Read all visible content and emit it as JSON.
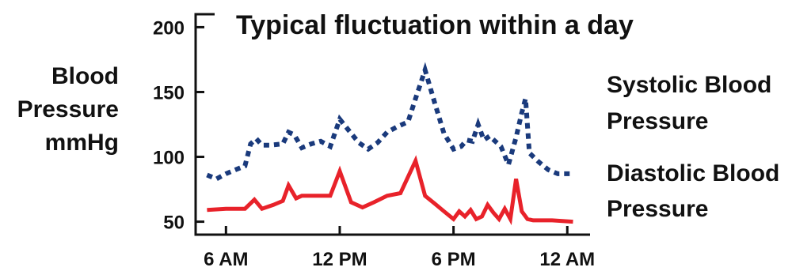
{
  "chart_data": {
    "type": "line",
    "title": "Typical fluctuation within a day",
    "ylabel_lines": [
      "Blood",
      "Pressure",
      "mmHg"
    ],
    "yticks": [
      50,
      100,
      150,
      200
    ],
    "ylim": [
      40,
      210
    ],
    "xticks": [
      {
        "label": "6 AM",
        "hour": 6
      },
      {
        "label": "12 PM",
        "hour": 12
      },
      {
        "label": "6 PM",
        "hour": 18
      },
      {
        "label": "12 AM",
        "hour": 24
      }
    ],
    "xlim": [
      4.4,
      25.2
    ],
    "grid": false,
    "legend_position": "right",
    "series": [
      {
        "name": "Systolic Blood Pressure",
        "legend_lines": [
          "Systolic Blood",
          "Pressure"
        ],
        "color": "#1a3a7c",
        "style": "dotted",
        "hours": [
          5.0,
          5.5,
          6.0,
          6.5,
          7.0,
          7.3,
          7.6,
          7.9,
          8.3,
          9.0,
          9.3,
          9.6,
          10.0,
          10.5,
          11.0,
          11.5,
          12.0,
          12.5,
          13.0,
          13.5,
          14.0,
          14.5,
          15.0,
          15.6,
          16.0,
          16.5,
          17.0,
          17.5,
          18.0,
          18.4,
          18.7,
          19.0,
          19.3,
          19.6,
          19.9,
          20.2,
          20.5,
          20.9,
          21.3,
          21.6,
          21.8,
          22.0,
          22.5,
          23.0,
          23.5,
          24.3
        ],
        "values": [
          86,
          83,
          87,
          90,
          93,
          110,
          114,
          109,
          109,
          110,
          119,
          117,
          107,
          110,
          112,
          108,
          129,
          120,
          111,
          106,
          111,
          119,
          123,
          127,
          145,
          167,
          142,
          118,
          106,
          108,
          113,
          112,
          125,
          113,
          116,
          112,
          108,
          94,
          115,
          134,
          145,
          103,
          96,
          90,
          87,
          87
        ]
      },
      {
        "name": "Diastolic Blood Pressure",
        "legend_lines": [
          "Diastolic Blood",
          "Pressure"
        ],
        "color": "#e8222a",
        "style": "solid",
        "hours": [
          5.0,
          6.0,
          7.0,
          7.5,
          7.9,
          8.5,
          9.0,
          9.3,
          9.7,
          10.0,
          10.5,
          11.0,
          11.5,
          12.0,
          12.6,
          13.2,
          13.8,
          14.5,
          15.2,
          16.0,
          16.5,
          17.0,
          17.5,
          18.0,
          18.3,
          18.6,
          18.9,
          19.2,
          19.5,
          19.8,
          20.1,
          20.4,
          20.7,
          21.0,
          21.3,
          21.6,
          21.9,
          22.2,
          22.7,
          23.2,
          24.3
        ],
        "values": [
          59,
          60,
          60,
          67,
          60,
          63,
          66,
          78,
          68,
          70,
          70,
          70,
          70,
          89,
          65,
          61,
          65,
          70,
          72,
          97,
          70,
          64,
          58,
          52,
          58,
          54,
          59,
          52,
          54,
          63,
          57,
          52,
          60,
          52,
          83,
          58,
          52,
          51,
          51,
          51,
          50
        ]
      }
    ]
  }
}
